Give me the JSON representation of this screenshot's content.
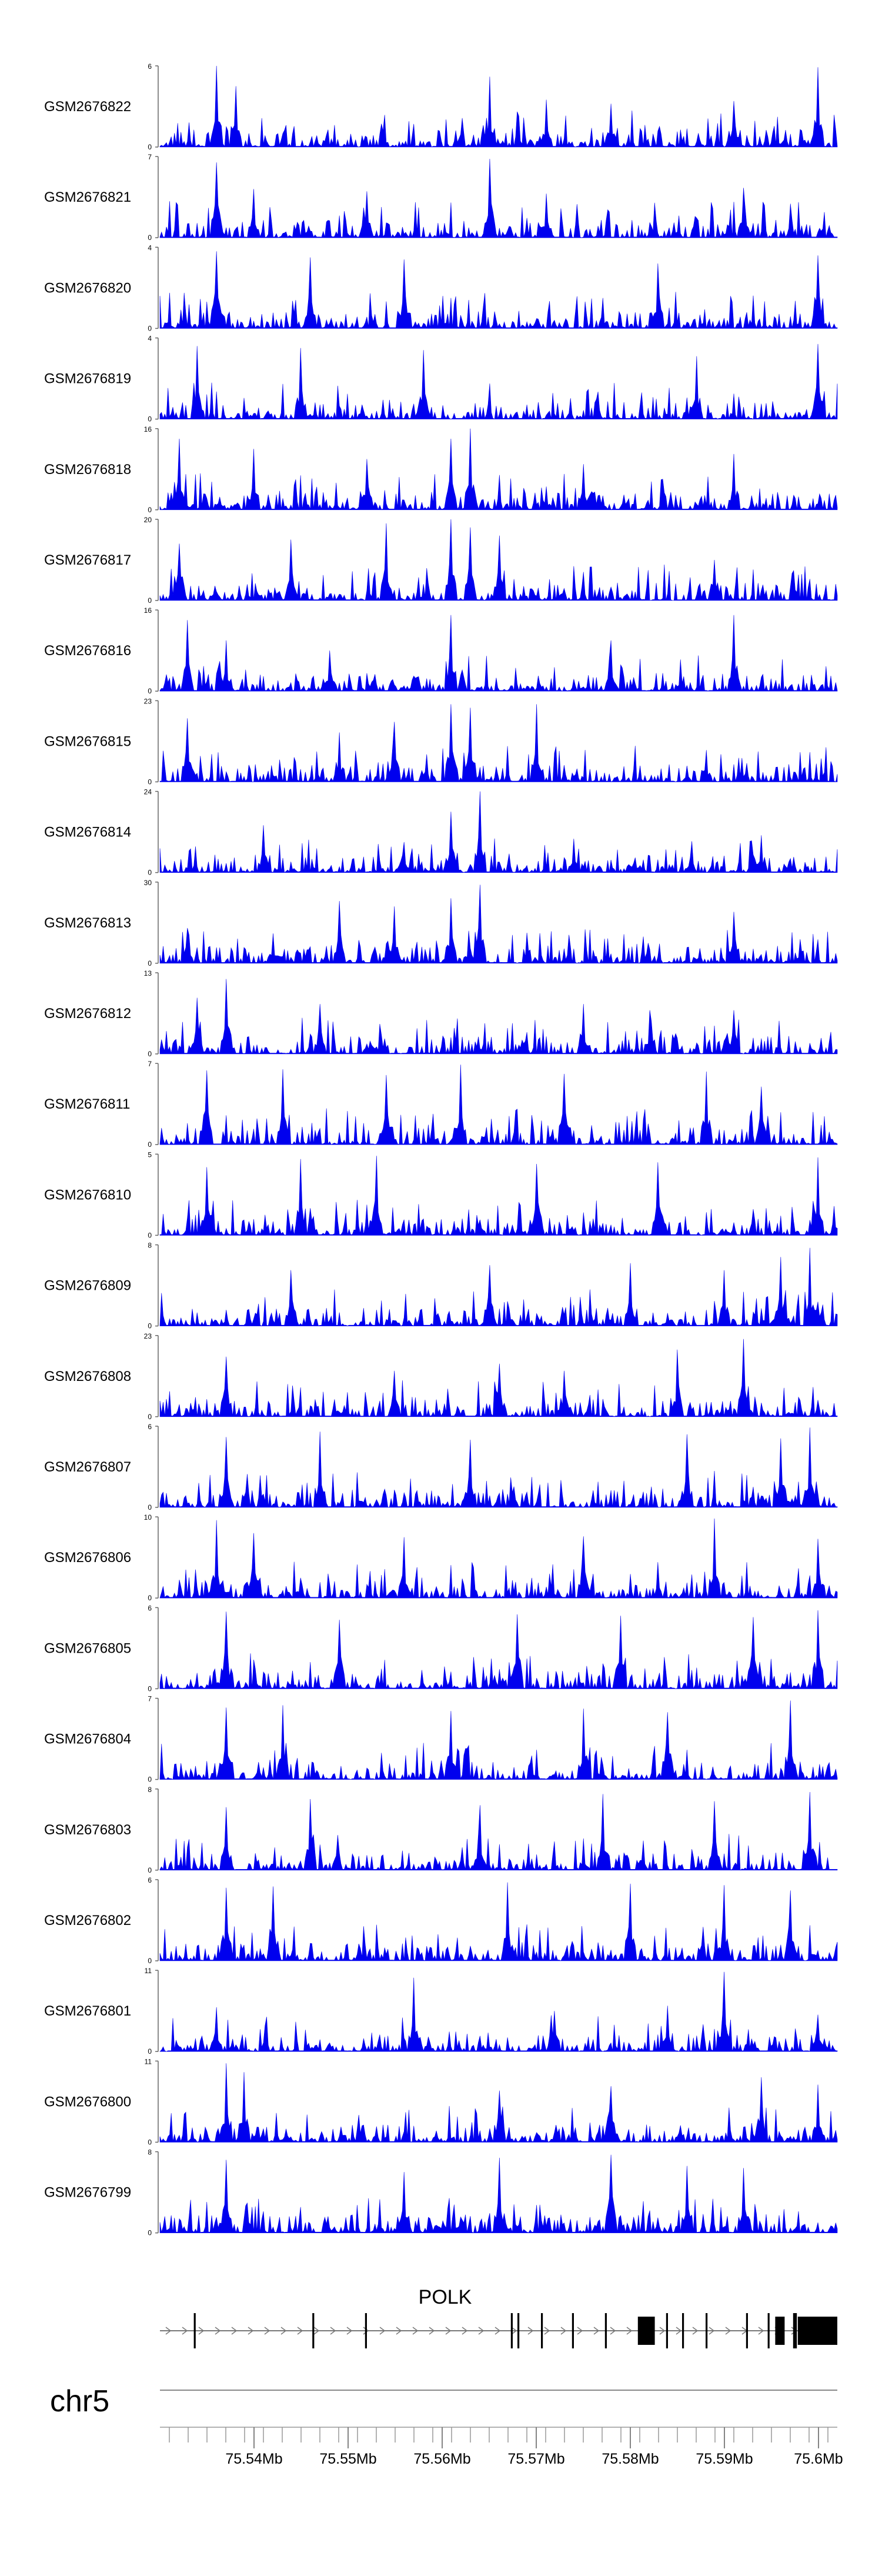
{
  "chart_data": {
    "type": "area",
    "genome_region": {
      "chromosome": "chr5",
      "xlim_mb": [
        75.53,
        75.602
      ],
      "x_tick_labels": [
        "75.54Mb",
        "75.55Mb",
        "75.56Mb",
        "75.57Mb",
        "75.58Mb",
        "75.59Mb",
        "75.6Mb"
      ],
      "x_tick_values_mb": [
        75.54,
        75.55,
        75.56,
        75.57,
        75.58,
        75.59,
        75.6
      ]
    },
    "fill_color": "#0000ee",
    "tracks": [
      {
        "name": "GSM2676822",
        "ymax": "6",
        "seed": 11,
        "peaks": [
          [
            75.536,
            6
          ],
          [
            75.565,
            5.2
          ],
          [
            75.6,
            5.9
          ],
          [
            75.538,
            4.5
          ],
          [
            75.571,
            3.5
          ],
          [
            75.578,
            3.2
          ],
          [
            75.591,
            3.4
          ]
        ]
      },
      {
        "name": "GSM2676821",
        "ymax": "7",
        "seed": 12,
        "peaks": [
          [
            75.536,
            6.5
          ],
          [
            75.565,
            6.8
          ],
          [
            75.54,
            4.2
          ],
          [
            75.552,
            4
          ],
          [
            75.592,
            4.3
          ],
          [
            75.571,
            3.8
          ]
        ]
      },
      {
        "name": "GSM2676820",
        "ymax": "4",
        "seed": 13,
        "peaks": [
          [
            75.536,
            3.8
          ],
          [
            75.546,
            3.5
          ],
          [
            75.6,
            3.6
          ],
          [
            75.556,
            3.4
          ],
          [
            75.583,
            3.2
          ]
        ]
      },
      {
        "name": "GSM2676819",
        "ymax": "4",
        "seed": 14,
        "peaks": [
          [
            75.534,
            3.6
          ],
          [
            75.545,
            3.5
          ],
          [
            75.558,
            3.4
          ],
          [
            75.6,
            3.7
          ],
          [
            75.587,
            3.1
          ]
        ]
      },
      {
        "name": "GSM2676818",
        "ymax": "16",
        "seed": 15,
        "peaks": [
          [
            75.563,
            16
          ],
          [
            75.561,
            14
          ],
          [
            75.532,
            14
          ],
          [
            75.54,
            12
          ],
          [
            75.591,
            11
          ],
          [
            75.552,
            10
          ],
          [
            75.575,
            9
          ]
        ]
      },
      {
        "name": "GSM2676817",
        "ymax": "20",
        "seed": 16,
        "peaks": [
          [
            75.561,
            20
          ],
          [
            75.563,
            18
          ],
          [
            75.554,
            19
          ],
          [
            75.566,
            16
          ],
          [
            75.544,
            15
          ],
          [
            75.532,
            14
          ],
          [
            75.589,
            10
          ]
        ]
      },
      {
        "name": "GSM2676816",
        "ymax": "16",
        "seed": 17,
        "peaks": [
          [
            75.561,
            15
          ],
          [
            75.533,
            14
          ],
          [
            75.591,
            15
          ],
          [
            75.578,
            10
          ],
          [
            75.537,
            10
          ],
          [
            75.548,
            8
          ]
        ]
      },
      {
        "name": "GSM2676815",
        "ymax": "23",
        "seed": 18,
        "peaks": [
          [
            75.561,
            22
          ],
          [
            75.563,
            21
          ],
          [
            75.57,
            22
          ],
          [
            75.533,
            18
          ],
          [
            75.555,
            17
          ],
          [
            75.549,
            14
          ],
          [
            75.588,
            9
          ]
        ]
      },
      {
        "name": "GSM2676814",
        "ymax": "24",
        "seed": 19,
        "peaks": [
          [
            75.564,
            24
          ],
          [
            75.561,
            18
          ],
          [
            75.541,
            14
          ],
          [
            75.574,
            10
          ],
          [
            75.594,
            11
          ],
          [
            75.556,
            9
          ]
        ]
      },
      {
        "name": "GSM2676813",
        "ymax": "30",
        "seed": 20,
        "peaks": [
          [
            75.564,
            29
          ],
          [
            75.561,
            24
          ],
          [
            75.549,
            23
          ],
          [
            75.555,
            21
          ],
          [
            75.591,
            19
          ],
          [
            75.533,
            13
          ],
          [
            75.542,
            11
          ]
        ]
      },
      {
        "name": "GSM2676812",
        "ymax": "13",
        "seed": 21,
        "peaks": [
          [
            75.537,
            12
          ],
          [
            75.534,
            9
          ],
          [
            75.547,
            8
          ],
          [
            75.575,
            8
          ],
          [
            75.591,
            7
          ],
          [
            75.582,
            7
          ]
        ]
      },
      {
        "name": "GSM2676811",
        "ymax": "7",
        "seed": 22,
        "peaks": [
          [
            75.562,
            6.9
          ],
          [
            75.535,
            6.4
          ],
          [
            75.543,
            6.5
          ],
          [
            75.588,
            6.3
          ],
          [
            75.554,
            6
          ],
          [
            75.573,
            6.1
          ],
          [
            75.594,
            5
          ]
        ]
      },
      {
        "name": "GSM2676810",
        "ymax": "5",
        "seed": 23,
        "peaks": [
          [
            75.553,
            4.9
          ],
          [
            75.6,
            4.8
          ],
          [
            75.545,
            4.7
          ],
          [
            75.583,
            4.5
          ],
          [
            75.57,
            4.4
          ],
          [
            75.535,
            4.2
          ]
        ]
      },
      {
        "name": "GSM2676809",
        "ymax": "8",
        "seed": 24,
        "peaks": [
          [
            75.599,
            7.7
          ],
          [
            75.596,
            6.8
          ],
          [
            75.565,
            6
          ],
          [
            75.544,
            5.5
          ],
          [
            75.58,
            6.2
          ],
          [
            75.59,
            5.5
          ]
        ]
      },
      {
        "name": "GSM2676808",
        "ymax": "23",
        "seed": 25,
        "peaks": [
          [
            75.592,
            22
          ],
          [
            75.585,
            19
          ],
          [
            75.537,
            17
          ],
          [
            75.566,
            15
          ],
          [
            75.573,
            13
          ],
          [
            75.555,
            13
          ]
        ]
      },
      {
        "name": "GSM2676807",
        "ymax": "6",
        "seed": 26,
        "peaks": [
          [
            75.547,
            5.6
          ],
          [
            75.599,
            5.9
          ],
          [
            75.596,
            5.1
          ],
          [
            75.586,
            5.4
          ],
          [
            75.563,
            5
          ],
          [
            75.537,
            5.2
          ]
        ]
      },
      {
        "name": "GSM2676806",
        "ymax": "10",
        "seed": 27,
        "peaks": [
          [
            75.536,
            9.6
          ],
          [
            75.589,
            9.8
          ],
          [
            75.54,
            8
          ],
          [
            75.575,
            7.6
          ],
          [
            75.556,
            7.5
          ],
          [
            75.6,
            7.3
          ]
        ]
      },
      {
        "name": "GSM2676805",
        "ymax": "6",
        "seed": 28,
        "peaks": [
          [
            75.537,
            5.7
          ],
          [
            75.6,
            5.8
          ],
          [
            75.568,
            5.5
          ],
          [
            75.579,
            5.4
          ],
          [
            75.549,
            5.1
          ],
          [
            75.593,
            5.3
          ]
        ]
      },
      {
        "name": "GSM2676804",
        "ymax": "7",
        "seed": 29,
        "peaks": [
          [
            75.597,
            6.8
          ],
          [
            75.543,
            6.4
          ],
          [
            75.575,
            6.1
          ],
          [
            75.561,
            5.9
          ],
          [
            75.584,
            5.8
          ],
          [
            75.537,
            6.2
          ]
        ]
      },
      {
        "name": "GSM2676803",
        "ymax": "8",
        "seed": 30,
        "peaks": [
          [
            75.599,
            7.7
          ],
          [
            75.577,
            7.5
          ],
          [
            75.546,
            7
          ],
          [
            75.589,
            6.8
          ],
          [
            75.564,
            6.4
          ],
          [
            75.537,
            6.2
          ]
        ]
      },
      {
        "name": "GSM2676802",
        "ymax": "6",
        "seed": 31,
        "peaks": [
          [
            75.567,
            5.8
          ],
          [
            75.542,
            5.5
          ],
          [
            75.59,
            5.6
          ],
          [
            75.58,
            5.7
          ],
          [
            75.597,
            5.2
          ],
          [
            75.537,
            5.4
          ]
        ]
      },
      {
        "name": "GSM2676801",
        "ymax": "11",
        "seed": 32,
        "peaks": [
          [
            75.59,
            10.8
          ],
          [
            75.557,
            10
          ],
          [
            75.536,
            6
          ],
          [
            75.572,
            5.5
          ],
          [
            75.584,
            6.2
          ],
          [
            75.6,
            5
          ]
        ]
      },
      {
        "name": "GSM2676800",
        "ymax": "11",
        "seed": 33,
        "peaks": [
          [
            75.537,
            10.7
          ],
          [
            75.539,
            9.5
          ],
          [
            75.594,
            8.8
          ],
          [
            75.578,
            7.6
          ],
          [
            75.566,
            7
          ],
          [
            75.6,
            7.8
          ]
        ]
      },
      {
        "name": "GSM2676799",
        "ymax": "8",
        "seed": 34,
        "peaks": [
          [
            75.578,
            7.7
          ],
          [
            75.566,
            7.4
          ],
          [
            75.537,
            7.2
          ],
          [
            75.586,
            6.6
          ],
          [
            75.556,
            6
          ],
          [
            75.592,
            6.4
          ]
        ]
      }
    ],
    "gene": {
      "name": "POLK",
      "span_mb": [
        75.53,
        75.602
      ],
      "strand": "+",
      "exons_mb": [
        [
          75.5336,
          75.5338
        ],
        [
          75.5462,
          75.5464
        ],
        [
          75.5518,
          75.552
        ],
        [
          75.5673,
          75.5675
        ],
        [
          75.568,
          75.5682
        ],
        [
          75.5705,
          75.5707
        ],
        [
          75.5738,
          75.574
        ],
        [
          75.5773,
          75.5775
        ],
        [
          75.5808,
          75.5826
        ],
        [
          75.5838,
          75.584
        ],
        [
          75.5855,
          75.5857
        ],
        [
          75.588,
          75.5882
        ],
        [
          75.5923,
          75.5925
        ],
        [
          75.5946,
          75.5948
        ],
        [
          75.5954,
          75.5964
        ],
        [
          75.5973,
          75.5977
        ],
        [
          75.5978,
          75.602
        ]
      ]
    }
  }
}
